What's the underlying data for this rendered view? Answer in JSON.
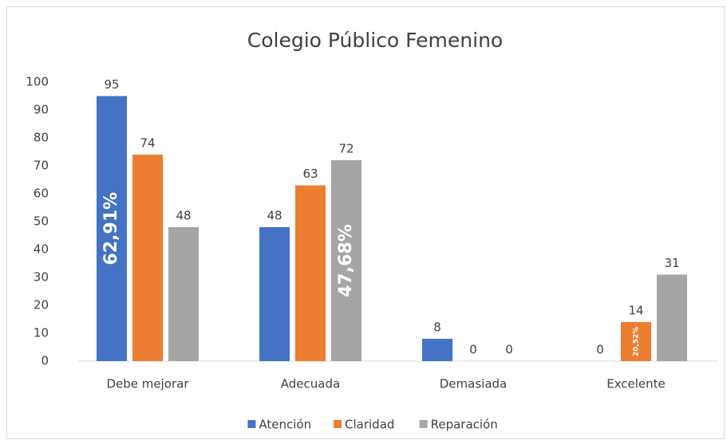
{
  "chart_data": {
    "type": "bar",
    "title": "Colegio Público Femenino",
    "categories": [
      "Debe mejorar",
      "Adecuada",
      "Demasiada",
      "Excelente"
    ],
    "series": [
      {
        "name": "Atención",
        "color": "#4472c4",
        "values": [
          95,
          48,
          8,
          0
        ]
      },
      {
        "name": "Claridad",
        "color": "#ed7d31",
        "values": [
          74,
          63,
          0,
          14
        ]
      },
      {
        "name": "Reparación",
        "color": "#a5a5a5",
        "values": [
          48,
          72,
          0,
          31
        ]
      }
    ],
    "ylim": [
      0,
      100
    ],
    "yticks": [
      0,
      10,
      20,
      30,
      40,
      50,
      60,
      70,
      80,
      90,
      100
    ],
    "grid": false,
    "legend": "bottom",
    "annotations": [
      {
        "text": "62,91%",
        "series": "Atención",
        "category": "Debe mejorar"
      },
      {
        "text": "47,68%",
        "series": "Reparación",
        "category": "Adecuada"
      },
      {
        "text": "20,52%",
        "series": "Claridad",
        "category": "Excelente"
      }
    ]
  }
}
